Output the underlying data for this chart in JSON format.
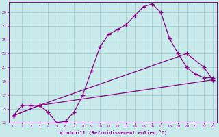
{
  "bg_color": "#c8eaea",
  "grid_color": "#9ec8c8",
  "line_color": "#880088",
  "marker": "+",
  "markersize": 4,
  "linewidth": 0.9,
  "xlabel": "Windchill (Refroidissement éolien,°C)",
  "xlim_min": -0.5,
  "xlim_max": 23.5,
  "ylim_min": 13,
  "ylim_max": 30.5,
  "yticks": [
    13,
    15,
    17,
    19,
    21,
    23,
    25,
    27,
    29
  ],
  "xticks": [
    0,
    1,
    2,
    3,
    4,
    5,
    6,
    7,
    8,
    9,
    10,
    11,
    12,
    13,
    14,
    15,
    16,
    17,
    18,
    19,
    20,
    21,
    22,
    23
  ],
  "xlabels": [
    "0",
    "1",
    "2",
    "3",
    "4",
    "5",
    "6",
    "7",
    "8",
    "9",
    "10",
    "11",
    "12",
    "13",
    "14",
    "15",
    "16",
    "17",
    "18",
    "19",
    "20",
    "21",
    "22",
    "23"
  ],
  "curve1_x": [
    0,
    1,
    2,
    3,
    4,
    5,
    6,
    7,
    8,
    9,
    10,
    11,
    12,
    13,
    14,
    15,
    16,
    17,
    18
  ],
  "curve1_y": [
    14.0,
    15.5,
    15.5,
    15.5,
    14.5,
    13.0,
    13.2,
    14.5,
    17.0,
    20.5,
    24.0,
    25.8,
    26.5,
    27.2,
    28.5,
    29.8,
    30.2,
    29.0,
    25.2
  ],
  "curve1b_x": [
    18,
    19,
    20,
    21,
    22,
    23
  ],
  "curve1b_y": [
    25.2,
    23.0,
    21.0,
    20.0,
    19.5,
    19.5
  ],
  "curve2_x": [
    0,
    3,
    23
  ],
  "curve2_y": [
    14.0,
    15.5,
    19.2
  ],
  "curve3_x": [
    0,
    3,
    20,
    22,
    23
  ],
  "curve3_y": [
    14.0,
    15.5,
    23.0,
    21.0,
    19.2
  ]
}
